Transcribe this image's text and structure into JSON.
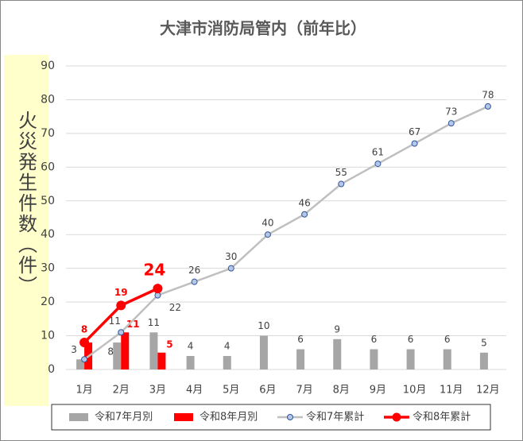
{
  "chart_data": {
    "type": "bar-line",
    "title": "大津市消防局管内（前年比）",
    "y_label": "火災発生件数（件）",
    "categories": [
      "1月",
      "2月",
      "3月",
      "4月",
      "5月",
      "6月",
      "7月",
      "8月",
      "9月",
      "10月",
      "11月",
      "12月"
    ],
    "series": [
      {
        "name": "令和7年月別",
        "type": "bar",
        "color": "#a6a6a6",
        "values": [
          3,
          8,
          11,
          4,
          4,
          10,
          6,
          9,
          6,
          6,
          6,
          5
        ]
      },
      {
        "name": "令和8年月別",
        "type": "bar",
        "color": "#ff0000",
        "values": [
          8,
          11,
          5,
          null,
          null,
          null,
          null,
          null,
          null,
          null,
          null,
          null
        ]
      },
      {
        "name": "令和7年累計",
        "type": "line",
        "color": "#bfbfbf",
        "values": [
          3,
          11,
          22,
          26,
          30,
          40,
          46,
          55,
          61,
          67,
          73,
          78
        ]
      },
      {
        "name": "令和8年累計",
        "type": "line",
        "color": "#ff0000",
        "values": [
          8,
          19,
          24,
          null,
          null,
          null,
          null,
          null,
          null,
          null,
          null,
          null
        ]
      }
    ],
    "ylim": [
      0,
      90
    ],
    "yticks": [
      0,
      10,
      20,
      30,
      40,
      50,
      60,
      70,
      80,
      90
    ],
    "grid": true
  }
}
